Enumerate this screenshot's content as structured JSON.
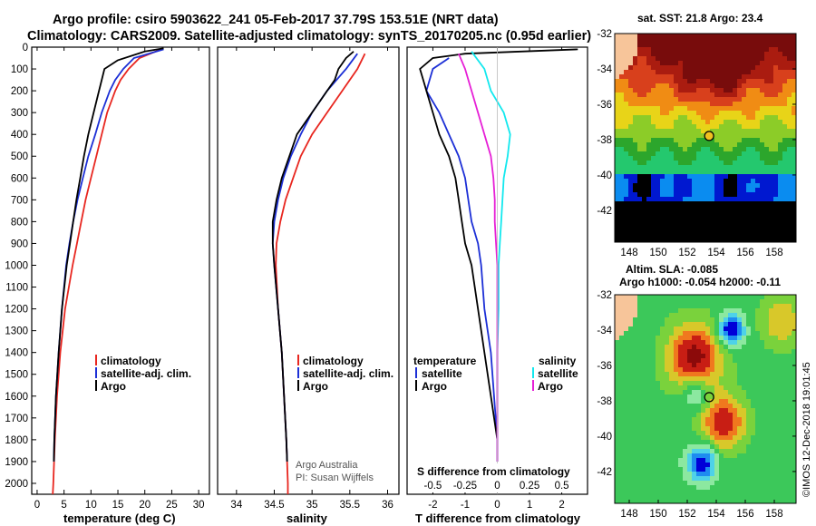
{
  "header": {
    "line1": "Argo profile: csiro 5903622_241 05-Feb-2017 37.79S 153.51E (NRT data)",
    "line2": "Climatology: CARS2009. Satellite-adjusted climatology: synTS_20170205.nc (0.95d earlier)"
  },
  "colors": {
    "climatology": "#e8261f",
    "satellite": "#1c2fd6",
    "argo": "#000000",
    "sat_salinity": "#12e8ee",
    "argo_salinity": "#e61fd6",
    "land": "#f7c59a"
  },
  "chart_data": [
    {
      "type": "line",
      "id": "temperature",
      "xlabel": "temperature (deg C)",
      "ylabel": "",
      "xlim": [
        -1,
        32
      ],
      "ylim": [
        2050,
        0
      ],
      "xticks": [
        0,
        5,
        10,
        15,
        20,
        25,
        30
      ],
      "yticks": [
        0,
        100,
        200,
        300,
        400,
        500,
        600,
        700,
        800,
        900,
        1000,
        1100,
        1200,
        1300,
        1400,
        1500,
        1600,
        1700,
        1800,
        1900,
        2000
      ],
      "legend": [
        "climatology",
        "satellite-adj. clim.",
        "Argo"
      ],
      "series": [
        {
          "name": "climatology",
          "color_key": "climatology",
          "depth": [
            10,
            50,
            100,
            150,
            200,
            300,
            400,
            500,
            600,
            700,
            800,
            900,
            1000,
            1200,
            1400,
            1600,
            1800,
            2000,
            2050
          ],
          "values": [
            23,
            19,
            17,
            15.5,
            14.5,
            13,
            12,
            11,
            10,
            9,
            8.2,
            7.4,
            6.6,
            5.2,
            4.3,
            3.7,
            3.3,
            3.0,
            2.9
          ]
        },
        {
          "name": "satellite-adj. clim.",
          "color_key": "satellite",
          "depth": [
            10,
            50,
            100,
            150,
            200,
            300,
            400,
            500,
            600,
            700,
            800,
            900,
            1000,
            1200,
            1400,
            1600,
            1800,
            1900
          ],
          "values": [
            23.5,
            18,
            16,
            14.5,
            13.5,
            12,
            10.8,
            9.5,
            8.5,
            7.5,
            6.7,
            6.0,
            5.4,
            4.6,
            4.0,
            3.5,
            3.2,
            3.1
          ]
        },
        {
          "name": "Argo",
          "color_key": "argo",
          "depth": [
            5,
            20,
            60,
            100,
            150,
            200,
            300,
            400,
            500,
            600,
            700,
            800,
            900,
            1000,
            1200,
            1400,
            1600,
            1800,
            1900
          ],
          "values": [
            23.5,
            20,
            15,
            12.5,
            12,
            11.5,
            10.5,
            9.5,
            8.7,
            8,
            7.3,
            6.7,
            6.1,
            5.5,
            4.6,
            4.0,
            3.5,
            3.2,
            3.1
          ]
        }
      ]
    },
    {
      "type": "line",
      "id": "salinity",
      "xlabel": "salinity",
      "xlim": [
        33.75,
        36.15
      ],
      "ylim": [
        2050,
        0
      ],
      "xticks": [
        34,
        34.5,
        35,
        35.5,
        36
      ],
      "xtick_labels": [
        "34",
        "34.5",
        "35",
        "35.5",
        "36"
      ],
      "legend": [
        "climatology",
        "satellite-adj. clim.",
        "Argo"
      ],
      "annotation": [
        "Argo Australia",
        "PI: Susan Wijffels"
      ],
      "series": [
        {
          "name": "climatology",
          "color_key": "climatology",
          "depth": [
            30,
            100,
            200,
            300,
            400,
            500,
            600,
            700,
            800,
            900,
            1000,
            1200,
            1400,
            1600,
            1800,
            2000,
            2050
          ],
          "values": [
            35.7,
            35.6,
            35.4,
            35.2,
            35.0,
            34.85,
            34.75,
            34.65,
            34.58,
            34.53,
            34.52,
            34.55,
            34.6,
            34.63,
            34.66,
            34.68,
            34.68
          ]
        },
        {
          "name": "satellite-adj. clim.",
          "color_key": "satellite",
          "depth": [
            30,
            100,
            200,
            300,
            400,
            500,
            600,
            700,
            800,
            900,
            1000,
            1200,
            1400,
            1600,
            1800,
            1900
          ],
          "values": [
            35.6,
            35.45,
            35.2,
            35.0,
            34.85,
            34.72,
            34.62,
            34.55,
            34.5,
            34.48,
            34.5,
            34.55,
            34.6,
            34.63,
            34.66,
            34.67
          ]
        },
        {
          "name": "Argo",
          "color_key": "argo",
          "depth": [
            20,
            50,
            100,
            150,
            200,
            300,
            400,
            500,
            600,
            700,
            800,
            900,
            1000,
            1200,
            1400,
            1600,
            1800,
            1900
          ],
          "values": [
            35.55,
            35.45,
            35.35,
            35.3,
            35.2,
            35.0,
            34.8,
            34.7,
            34.6,
            34.53,
            34.48,
            34.48,
            34.5,
            34.55,
            34.6,
            34.63,
            34.66,
            34.67
          ]
        }
      ]
    },
    {
      "type": "line",
      "id": "difference",
      "xlabel": "T difference from climatology",
      "xlabel_top": "S difference from climatology",
      "xlim": [
        -2.8,
        2.8
      ],
      "ylim": [
        2050,
        0
      ],
      "xticks": [
        -2,
        -1,
        0,
        1,
        2
      ],
      "top_ticks": [
        -0.5,
        -0.25,
        0,
        0.25,
        0.5
      ],
      "top_tick_labels": [
        "-0.5",
        "-0.25",
        "0",
        "0.25",
        "0.5"
      ],
      "legend_left_title": "temperature",
      "legend_right_title": "salinity",
      "legend_left": [
        "satellite",
        "Argo"
      ],
      "legend_right": [
        "satellite",
        "Argo"
      ],
      "series": [
        {
          "name": "T satellite",
          "color_key": "satellite",
          "depth": [
            50,
            100,
            200,
            300,
            400,
            500,
            600,
            700,
            800,
            900,
            1000,
            1200,
            1400,
            1600,
            1800,
            1900
          ],
          "values": [
            -1.5,
            -2.0,
            -2.2,
            -1.8,
            -1.5,
            -1.2,
            -1.0,
            -0.9,
            -0.8,
            -0.6,
            -0.5,
            -0.4,
            -0.2,
            -0.1,
            0,
            0
          ]
        },
        {
          "name": "T Argo",
          "color_key": "argo",
          "depth": [
            10,
            30,
            50,
            100,
            150,
            200,
            300,
            400,
            500,
            600,
            700,
            800,
            900,
            1000,
            1200,
            1400,
            1600,
            1800,
            1900
          ],
          "values": [
            2.5,
            -1.0,
            -2.0,
            -2.4,
            -2.3,
            -2.2,
            -2.0,
            -1.8,
            -1.5,
            -1.3,
            -1.2,
            -1.1,
            -1.0,
            -0.8,
            -0.6,
            -0.4,
            -0.2,
            0,
            0
          ]
        },
        {
          "name": "S satellite",
          "color_key": "sat_salinity",
          "depth": [
            20,
            100,
            200,
            300,
            400,
            500,
            600,
            700,
            800,
            900,
            1000,
            1200,
            1400,
            1600,
            1800,
            1900
          ],
          "values": [
            -0.2,
            -0.1,
            -0.05,
            0.05,
            0.1,
            0.08,
            0.05,
            0.04,
            0.03,
            0.02,
            0.01,
            0.01,
            0,
            0,
            0,
            0
          ]
        },
        {
          "name": "S Argo",
          "color_key": "argo_salinity",
          "depth": [
            30,
            100,
            200,
            300,
            400,
            500,
            600,
            700,
            800,
            900,
            1000,
            1200,
            1400,
            1600,
            1800,
            1900
          ],
          "values": [
            -0.3,
            -0.25,
            -0.2,
            -0.15,
            -0.1,
            -0.05,
            -0.03,
            -0.02,
            -0.02,
            -0.01,
            0,
            0,
            0,
            0,
            0,
            0
          ]
        }
      ]
    }
  ],
  "sst_map": {
    "title": "sat. SST: 21.8 Argo: 23.4",
    "yticks": [
      -32,
      -34,
      -36,
      -38,
      -40,
      -42
    ],
    "xticks": [
      148,
      150,
      152,
      154,
      156,
      158
    ],
    "xlim": [
      147,
      159.5
    ],
    "ylim": [
      -43.8,
      -32
    ],
    "marker": {
      "lon": 153.51,
      "lat": -37.79
    },
    "palette": [
      "#000000",
      "#0018d0",
      "#0a8cf0",
      "#1ad2ff",
      "#24c86e",
      "#2ca62c",
      "#8ccc28",
      "#e8d418",
      "#f08c14",
      "#d8401c",
      "#aa1c10",
      "#780c0c"
    ]
  },
  "sla_map": {
    "title_line1": "Altim. SLA: -0.085",
    "title_line2": "Argo h1000: -0.054 h2000: -0.11",
    "yticks": [
      -32,
      -34,
      -36,
      -38,
      -40,
      -42
    ],
    "xticks": [
      148,
      150,
      152,
      154,
      156,
      158
    ],
    "xlim": [
      147,
      159.5
    ],
    "ylim": [
      -43.8,
      -32
    ],
    "marker": {
      "lon": 153.51,
      "lat": -37.79
    },
    "palette": [
      "#0000d8",
      "#1e8cf0",
      "#4ed2e8",
      "#8ce8a0",
      "#3cc85a",
      "#7ad23c",
      "#d8c82a",
      "#f0781e",
      "#c81e14",
      "#8c0a0a"
    ]
  },
  "credit": "©IMOS 12-Dec-2018 19:01:45"
}
